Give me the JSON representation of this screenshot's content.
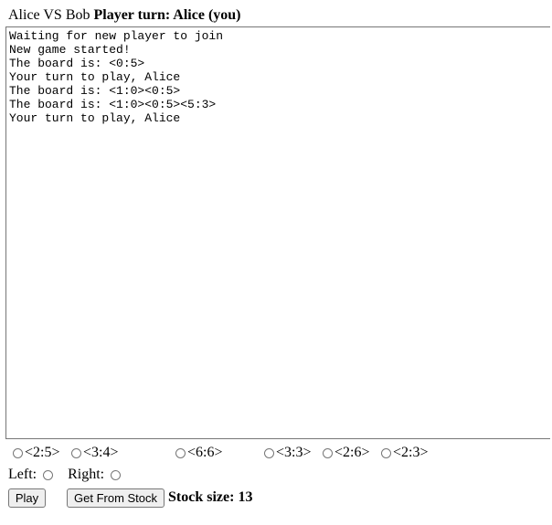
{
  "header": {
    "matchup": "Alice VS Bob",
    "turn_label": "Player turn: Alice (you)"
  },
  "log": {
    "text": "Waiting for new player to join\nNew game started!\nThe board is: <0:5>\nYour turn to play, Alice\nThe board is: <1:0><0:5>\nThe board is: <1:0><0:5><5:3>\nYour turn to play, Alice"
  },
  "tiles": [
    {
      "label": "<2:5>"
    },
    {
      "label": "<3:4>"
    },
    {
      "label": "<6:6>"
    },
    {
      "label": "<3:3>"
    },
    {
      "label": "<2:6>"
    },
    {
      "label": "<2:3>"
    }
  ],
  "sides": {
    "left_label": "Left:",
    "right_label": "Right:"
  },
  "controls": {
    "play_label": "Play",
    "stock_label": "Get From Stock",
    "stock_size": "Stock size: 13"
  }
}
